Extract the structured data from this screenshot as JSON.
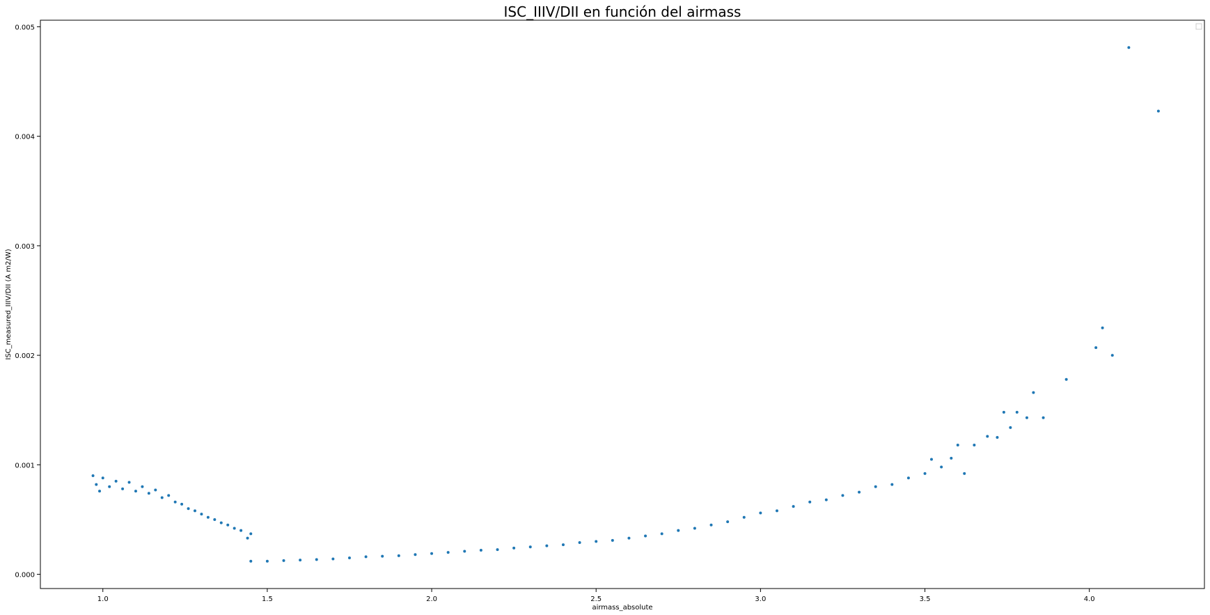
{
  "chart_data": {
    "type": "scatter",
    "title": "ISC_IIIV/DII en función del airmass",
    "xlabel": "airmass_absolute",
    "ylabel": "ISC_measured_IIIV/DII (A m2/W)",
    "xlim": [
      0.81,
      4.35
    ],
    "ylim": [
      -0.00013,
      0.00506
    ],
    "xticks": [
      1.0,
      1.5,
      2.0,
      2.5,
      3.0,
      3.5,
      4.0
    ],
    "xtick_labels": [
      "1.0",
      "1.5",
      "2.0",
      "2.5",
      "3.0",
      "3.5",
      "4.0"
    ],
    "yticks": [
      0.0,
      0.001,
      0.002,
      0.003,
      0.004,
      0.005
    ],
    "ytick_labels": [
      "0.000",
      "0.001",
      "0.002",
      "0.003",
      "0.004",
      "0.005"
    ],
    "grid": false,
    "legend": "top-right",
    "marker_color": "#1f77b4",
    "series": [
      {
        "values": [
          [
            0.97,
            0.0009
          ],
          [
            0.98,
            0.00082
          ],
          [
            0.99,
            0.00076
          ],
          [
            1.0,
            0.00088
          ],
          [
            1.02,
            0.0008
          ],
          [
            1.04,
            0.00085
          ],
          [
            1.06,
            0.00078
          ],
          [
            1.08,
            0.00084
          ],
          [
            1.1,
            0.00076
          ],
          [
            1.12,
            0.0008
          ],
          [
            1.14,
            0.00074
          ],
          [
            1.16,
            0.00077
          ],
          [
            1.18,
            0.0007
          ],
          [
            1.2,
            0.00072
          ],
          [
            1.22,
            0.00066
          ],
          [
            1.24,
            0.00064
          ],
          [
            1.26,
            0.0006
          ],
          [
            1.28,
            0.00058
          ],
          [
            1.3,
            0.00055
          ],
          [
            1.32,
            0.00052
          ],
          [
            1.34,
            0.0005
          ],
          [
            1.36,
            0.00047
          ],
          [
            1.38,
            0.00045
          ],
          [
            1.4,
            0.00042
          ],
          [
            1.42,
            0.0004
          ],
          [
            1.44,
            0.00033
          ],
          [
            1.45,
            0.00037
          ],
          [
            1.45,
            0.00012
          ],
          [
            1.5,
            0.00012
          ],
          [
            1.55,
            0.000125
          ],
          [
            1.6,
            0.00013
          ],
          [
            1.65,
            0.000135
          ],
          [
            1.7,
            0.00014
          ],
          [
            1.75,
            0.00015
          ],
          [
            1.8,
            0.00016
          ],
          [
            1.85,
            0.000165
          ],
          [
            1.9,
            0.00017
          ],
          [
            1.95,
            0.00018
          ],
          [
            2.0,
            0.00019
          ],
          [
            2.05,
            0.0002
          ],
          [
            2.1,
            0.00021
          ],
          [
            2.15,
            0.00022
          ],
          [
            2.2,
            0.000225
          ],
          [
            2.25,
            0.00024
          ],
          [
            2.3,
            0.00025
          ],
          [
            2.35,
            0.00026
          ],
          [
            2.4,
            0.00027
          ],
          [
            2.45,
            0.00029
          ],
          [
            2.5,
            0.0003
          ],
          [
            2.55,
            0.00031
          ],
          [
            2.6,
            0.00033
          ],
          [
            2.65,
            0.00035
          ],
          [
            2.7,
            0.00037
          ],
          [
            2.75,
            0.0004
          ],
          [
            2.8,
            0.00042
          ],
          [
            2.85,
            0.00045
          ],
          [
            2.9,
            0.00048
          ],
          [
            2.95,
            0.00052
          ],
          [
            3.0,
            0.00056
          ],
          [
            3.05,
            0.00058
          ],
          [
            3.1,
            0.00062
          ],
          [
            3.15,
            0.00066
          ],
          [
            3.2,
            0.00068
          ],
          [
            3.25,
            0.00072
          ],
          [
            3.3,
            0.00075
          ],
          [
            3.35,
            0.0008
          ],
          [
            3.4,
            0.00082
          ],
          [
            3.45,
            0.00088
          ],
          [
            3.5,
            0.00092
          ],
          [
            3.52,
            0.00105
          ],
          [
            3.55,
            0.00098
          ],
          [
            3.58,
            0.00106
          ],
          [
            3.6,
            0.00118
          ],
          [
            3.62,
            0.00092
          ],
          [
            3.65,
            0.00118
          ],
          [
            3.69,
            0.00126
          ],
          [
            3.72,
            0.00125
          ],
          [
            3.74,
            0.00148
          ],
          [
            3.76,
            0.00134
          ],
          [
            3.78,
            0.00148
          ],
          [
            3.81,
            0.00143
          ],
          [
            3.83,
            0.00166
          ],
          [
            3.86,
            0.00143
          ],
          [
            3.93,
            0.00178
          ],
          [
            4.02,
            0.00207
          ],
          [
            4.04,
            0.00225
          ],
          [
            4.07,
            0.002
          ],
          [
            4.12,
            0.00481
          ],
          [
            4.21,
            0.00423
          ]
        ]
      }
    ]
  }
}
